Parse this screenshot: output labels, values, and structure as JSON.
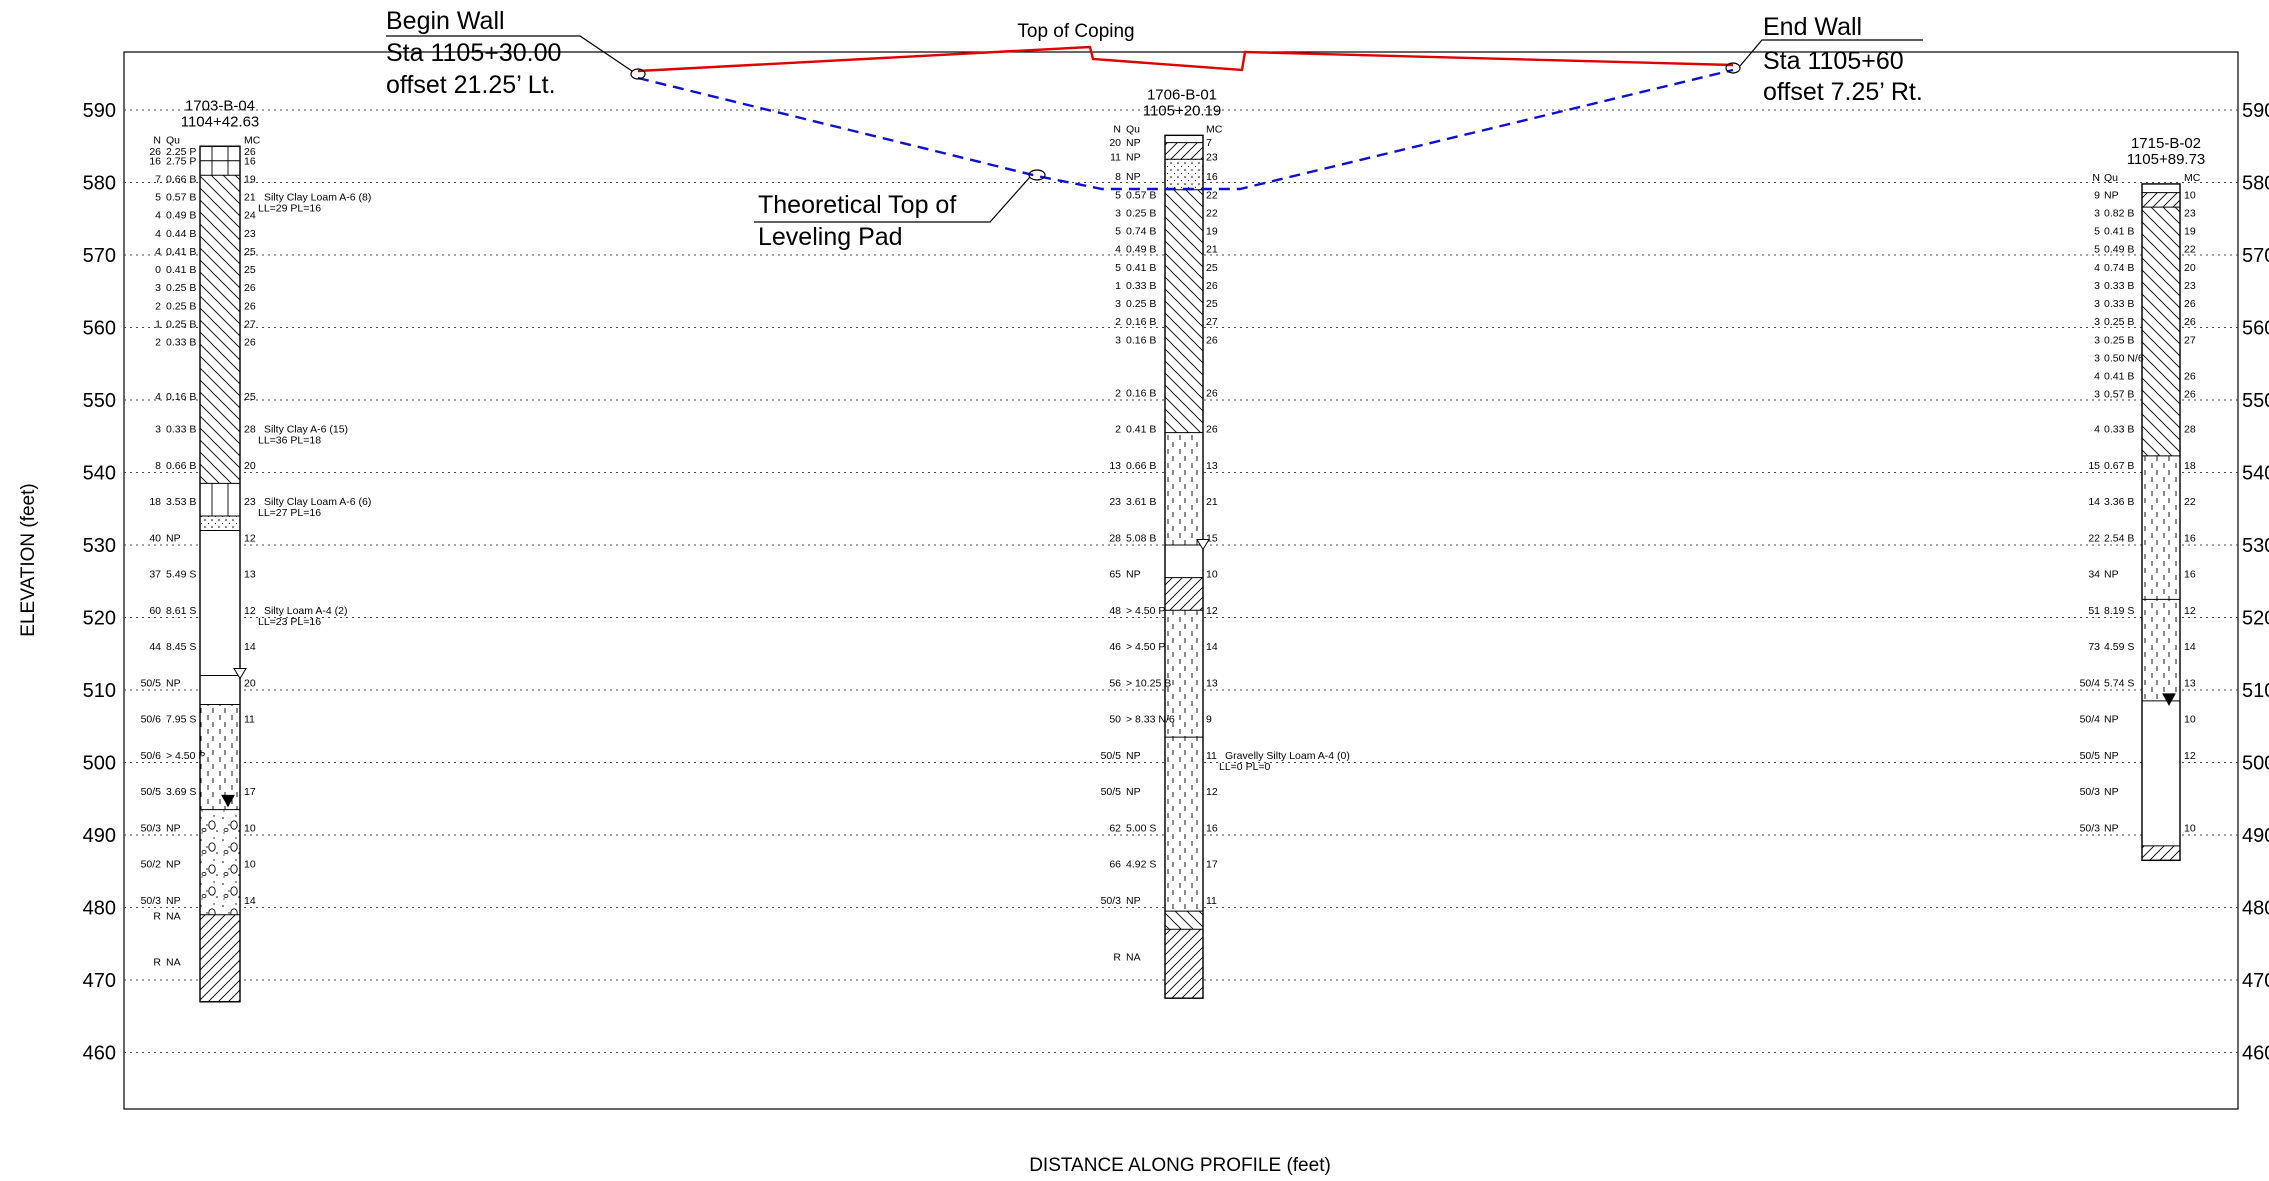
{
  "axes": {
    "y_label": "ELEVATION (feet)",
    "x_label": "DISTANCE ALONG PROFILE (feet)",
    "y_ticks": [
      "590",
      "580",
      "570",
      "560",
      "550",
      "540",
      "530",
      "520",
      "510",
      "500",
      "490",
      "480",
      "470",
      "460"
    ]
  },
  "wall": {
    "top_label": "Top of Coping",
    "begin": {
      "title": "Begin Wall",
      "sta": "Sta 1105+30.00",
      "offset": "offset 21.25’ Lt."
    },
    "end": {
      "title": "End Wall",
      "sta": "Sta 1105+60",
      "offset": "offset 7.25’ Rt."
    },
    "pad_line1": "Theoretical Top of",
    "pad_line2": "Leveling Pad",
    "coping_color": "#e00000",
    "pad_color": "#1010d0"
  },
  "borings": [
    {
      "id": "1703-B-04",
      "station": "1104+42.63",
      "head_n": "N",
      "head_qu": "Qu",
      "head_mc": "MC",
      "top_elev": 585,
      "bottom_elev": 467,
      "rows": [
        {
          "e": 584.3,
          "n": "26",
          "qu": "2.25 P",
          "mc": "26"
        },
        {
          "e": 583,
          "n": "16",
          "qu": "2.75 P",
          "mc": "16"
        },
        {
          "e": 580.5,
          "n": "7",
          "qu": "0.66 B",
          "mc": "19"
        },
        {
          "e": 578,
          "n": "5",
          "qu": "0.57 B",
          "mc": "21"
        },
        {
          "e": 575.5,
          "n": "4",
          "qu": "0.49 B",
          "mc": "24"
        },
        {
          "e": 573,
          "n": "4",
          "qu": "0.44 B",
          "mc": "23"
        },
        {
          "e": 570.5,
          "n": "4",
          "qu": "0.41 B",
          "mc": "25"
        },
        {
          "e": 568,
          "n": "0",
          "qu": "0.41 B",
          "mc": "25"
        },
        {
          "e": 565.5,
          "n": "3",
          "qu": "0.25 B",
          "mc": "26"
        },
        {
          "e": 563,
          "n": "2",
          "qu": "0.25 B",
          "mc": "26"
        },
        {
          "e": 560.5,
          "n": "1",
          "qu": "0.25 B",
          "mc": "27"
        },
        {
          "e": 558,
          "n": "2",
          "qu": "0.33 B",
          "mc": "26"
        },
        {
          "e": 550.5,
          "n": "4",
          "qu": "0.16 B",
          "mc": "25"
        },
        {
          "e": 546,
          "n": "3",
          "qu": "0.33 B",
          "mc": "28"
        },
        {
          "e": 541,
          "n": "8",
          "qu": "0.66 B",
          "mc": "20"
        },
        {
          "e": 536,
          "n": "18",
          "qu": "3.53 B",
          "mc": "23"
        },
        {
          "e": 531,
          "n": "40",
          "qu": "NP",
          "mc": "12"
        },
        {
          "e": 526,
          "n": "37",
          "qu": "5.49 S",
          "mc": "13"
        },
        {
          "e": 521,
          "n": "60",
          "qu": "8.61 S",
          "mc": "12"
        },
        {
          "e": 516,
          "n": "44",
          "qu": "8.45 S",
          "mc": "14"
        },
        {
          "e": 511,
          "n": "50/5",
          "qu": "NP",
          "mc": "20"
        },
        {
          "e": 506,
          "n": "50/6",
          "qu": "7.95 S",
          "mc": "11"
        },
        {
          "e": 501,
          "n": "50/6",
          "qu": "> 4.50 P",
          "mc": ""
        },
        {
          "e": 496,
          "n": "50/5",
          "qu": "3.69 S",
          "mc": "17"
        },
        {
          "e": 491,
          "n": "50/3",
          "qu": "NP",
          "mc": "10"
        },
        {
          "e": 486,
          "n": "50/2",
          "qu": "NP",
          "mc": "10"
        },
        {
          "e": 481,
          "n": "50/3",
          "qu": "NP",
          "mc": "14"
        },
        {
          "e": 478.8,
          "n": "R",
          "qu": "NA",
          "mc": ""
        },
        {
          "e": 472.5,
          "n": "R",
          "qu": "NA",
          "mc": ""
        }
      ],
      "notes": [
        {
          "e": 578,
          "l1": "Silty Clay Loam A-6 (8)",
          "l2": "LL=29 PL=16"
        },
        {
          "e": 546,
          "l1": "Silty Clay A-6 (15)",
          "l2": "LL=36 PL=18"
        },
        {
          "e": 536,
          "l1": "Silty Clay Loam A-6 (6)",
          "l2": "LL=27 PL=16"
        },
        {
          "e": 521,
          "l1": "Silty Loam A-4 (2)",
          "l2": "LL=23 PL=16"
        }
      ],
      "water_open": 512,
      "water_solid": 494.5
    },
    {
      "id": "1706-B-01",
      "station": "1105+20.19",
      "head_n": "N",
      "head_qu": "Qu",
      "head_mc": "MC",
      "top_elev": 586.5,
      "bottom_elev": 467.5,
      "rows": [
        {
          "e": 585.5,
          "n": "20",
          "qu": "NP",
          "mc": "7"
        },
        {
          "e": 583.5,
          "n": "11",
          "qu": "NP",
          "mc": "23"
        },
        {
          "e": 580.8,
          "n": "8",
          "qu": "NP",
          "mc": "16"
        },
        {
          "e": 578.3,
          "n": "5",
          "qu": "0.57 B",
          "mc": "22"
        },
        {
          "e": 575.8,
          "n": "3",
          "qu": "0.25 B",
          "mc": "22"
        },
        {
          "e": 573.3,
          "n": "5",
          "qu": "0.74 B",
          "mc": "19"
        },
        {
          "e": 570.8,
          "n": "4",
          "qu": "0.49 B",
          "mc": "21"
        },
        {
          "e": 568.3,
          "n": "5",
          "qu": "0.41 B",
          "mc": "25"
        },
        {
          "e": 565.8,
          "n": "1",
          "qu": "0.33 B",
          "mc": "26"
        },
        {
          "e": 563.3,
          "n": "3",
          "qu": "0.25 B",
          "mc": "25"
        },
        {
          "e": 560.8,
          "n": "2",
          "qu": "0.16 B",
          "mc": "27"
        },
        {
          "e": 558.3,
          "n": "3",
          "qu": "0.16 B",
          "mc": "26"
        },
        {
          "e": 551,
          "n": "2",
          "qu": "0.16 B",
          "mc": "26"
        },
        {
          "e": 546,
          "n": "2",
          "qu": "0.41 B",
          "mc": "26"
        },
        {
          "e": 541,
          "n": "13",
          "qu": "0.66 B",
          "mc": "13"
        },
        {
          "e": 536,
          "n": "23",
          "qu": "3.61 B",
          "mc": "21"
        },
        {
          "e": 531,
          "n": "28",
          "qu": "5.08 B",
          "mc": "15"
        },
        {
          "e": 526,
          "n": "65",
          "qu": "NP",
          "mc": "10"
        },
        {
          "e": 521,
          "n": "48",
          "qu": "> 4.50 P",
          "mc": "12"
        },
        {
          "e": 516,
          "n": "46",
          "qu": "> 4.50 P",
          "mc": "14"
        },
        {
          "e": 511,
          "n": "56",
          "qu": "> 10.25 B",
          "mc": "13"
        },
        {
          "e": 506,
          "n": "50",
          "qu": "> 8.33 N/6",
          "mc": "9"
        },
        {
          "e": 501,
          "n": "50/5",
          "qu": "NP",
          "mc": "11"
        },
        {
          "e": 496,
          "n": "50/5",
          "qu": "NP",
          "mc": "12"
        },
        {
          "e": 491,
          "n": "62",
          "qu": "5.00 S",
          "mc": "16"
        },
        {
          "e": 486,
          "n": "66",
          "qu": "4.92 S",
          "mc": "17"
        },
        {
          "e": 481,
          "n": "50/3",
          "qu": "NP",
          "mc": "11"
        },
        {
          "e": 473.2,
          "n": "R",
          "qu": "NA",
          "mc": ""
        }
      ],
      "notes": [
        {
          "e": 501,
          "l1": "Gravelly Silty Loam A-4 (0)",
          "l2": "LL=0 PL=0"
        }
      ],
      "water_open": 529.8,
      "water_solid": null
    },
    {
      "id": "1715-B-02",
      "station": "1105+89.73",
      "head_n": "N",
      "head_qu": "Qu",
      "head_mc": "MC",
      "top_elev": 579.8,
      "bottom_elev": 486.5,
      "rows": [
        {
          "e": 578.3,
          "n": "9",
          "qu": "NP",
          "mc": "10"
        },
        {
          "e": 575.8,
          "n": "3",
          "qu": "0.82 B",
          "mc": "23"
        },
        {
          "e": 573.3,
          "n": "5",
          "qu": "0.41 B",
          "mc": "19"
        },
        {
          "e": 570.8,
          "n": "5",
          "qu": "0.49 B",
          "mc": "22"
        },
        {
          "e": 568.3,
          "n": "4",
          "qu": "0.74 B",
          "mc": "20"
        },
        {
          "e": 565.8,
          "n": "3",
          "qu": "0.33 B",
          "mc": "23"
        },
        {
          "e": 563.3,
          "n": "3",
          "qu": "0.33 B",
          "mc": "26"
        },
        {
          "e": 560.8,
          "n": "3",
          "qu": "0.25 B",
          "mc": "26"
        },
        {
          "e": 558.3,
          "n": "3",
          "qu": "0.25 B",
          "mc": "27"
        },
        {
          "e": 555.8,
          "n": "3",
          "qu": "0.50 N/6",
          "mc": ""
        },
        {
          "e": 553.3,
          "n": "4",
          "qu": "0.41 B",
          "mc": "26"
        },
        {
          "e": 550.8,
          "n": "3",
          "qu": "0.57 B",
          "mc": "26"
        },
        {
          "e": 546,
          "n": "4",
          "qu": "0.33 B",
          "mc": "28"
        },
        {
          "e": 541,
          "n": "15",
          "qu": "0.67 B",
          "mc": "18"
        },
        {
          "e": 536,
          "n": "14",
          "qu": "3.36 B",
          "mc": "22"
        },
        {
          "e": 531,
          "n": "22",
          "qu": "2.54 B",
          "mc": "16"
        },
        {
          "e": 526,
          "n": "34",
          "qu": "NP",
          "mc": "16"
        },
        {
          "e": 521,
          "n": "51",
          "qu": "8.19 S",
          "mc": "12"
        },
        {
          "e": 516,
          "n": "73",
          "qu": "4.59 S",
          "mc": "14"
        },
        {
          "e": 511,
          "n": "50/4",
          "qu": "5.74 S",
          "mc": "13"
        },
        {
          "e": 506,
          "n": "50/4",
          "qu": "NP",
          "mc": "10"
        },
        {
          "e": 501,
          "n": "50/5",
          "qu": "NP",
          "mc": "12"
        },
        {
          "e": 496,
          "n": "50/3",
          "qu": "NP",
          "mc": ""
        },
        {
          "e": 491,
          "n": "50/3",
          "qu": "NP",
          "mc": "10"
        }
      ],
      "notes": [],
      "water_open": null,
      "water_solid": 508.5
    }
  ]
}
